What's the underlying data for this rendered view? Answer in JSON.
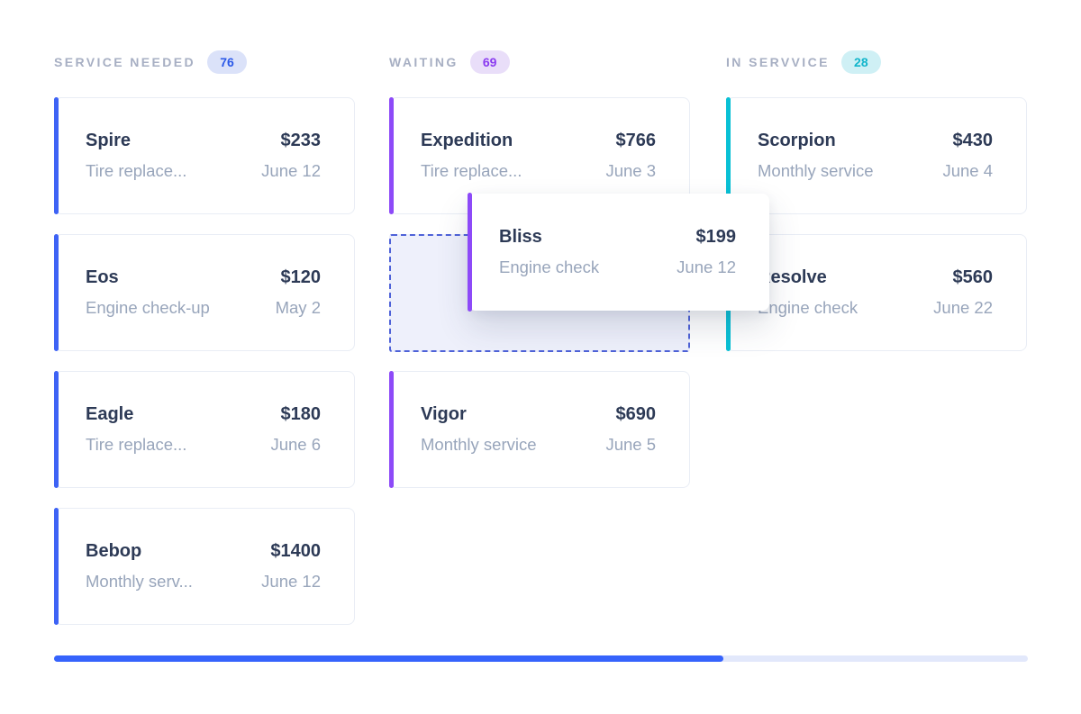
{
  "columns": [
    {
      "id": "service-needed",
      "label": "SERVICE NEEDED",
      "count": "76",
      "accent": "#3e63f5",
      "badge": {
        "bg": "#dbe2f9",
        "fg": "#2b59e8"
      },
      "cards": [
        {
          "title": "Spire",
          "price": "$233",
          "service": "Tire replace...",
          "date": "June 12"
        },
        {
          "title": "Eos",
          "price": "$120",
          "service": "Engine check-up",
          "date": "May 2"
        },
        {
          "title": "Eagle",
          "price": "$180",
          "service": "Tire replace...",
          "date": "June 6"
        },
        {
          "title": "Bebop",
          "price": "$1400",
          "service": "Monthly serv...",
          "date": "June 12"
        }
      ]
    },
    {
      "id": "waiting",
      "label": "WAITING",
      "count": "69",
      "accent": "#8d4af8",
      "badge": {
        "bg": "#e9def9",
        "fg": "#8a3bf0"
      },
      "cards": [
        {
          "title": "Expedition",
          "price": "$766",
          "service": "Tire replace...",
          "date": "June 3"
        },
        {
          "title": "Vigor",
          "price": "$690",
          "service": "Monthly service",
          "date": "June 5"
        }
      ]
    },
    {
      "id": "in-service",
      "label": "IN SERVVICE",
      "count": "28",
      "accent": "#09c0d5",
      "badge": {
        "bg": "#cff0f5",
        "fg": "#12b5cb"
      },
      "cards": [
        {
          "title": "Scorpion",
          "price": "$430",
          "service": "Monthly service",
          "date": "June 4"
        },
        {
          "title": "Resolve",
          "price": "$560",
          "service": "Engine check",
          "date": "June 22"
        }
      ]
    }
  ],
  "dragged_card": {
    "title": "Bliss",
    "price": "$199",
    "service": "Engine check",
    "date": "June 12",
    "accent": "#8d4af8",
    "from_column": "waiting"
  },
  "progress": {
    "percent": 68.7
  },
  "colors": {
    "page_bg": "#ffffff",
    "card_bg": "#ffffff",
    "card_border": "#e9edf5",
    "title_text": "#2d3a56",
    "muted_text": "#98a5bb",
    "column_header_text": "#a7afc3",
    "accent_blue": "#3e63f5",
    "accent_purple": "#8d4af8",
    "accent_teal": "#09c0d5",
    "drop_zone_border": "#4e62d8",
    "drop_zone_bg": "#eef0fb",
    "progress_fill": "#3663fc",
    "progress_track": "#e2e8fb"
  }
}
